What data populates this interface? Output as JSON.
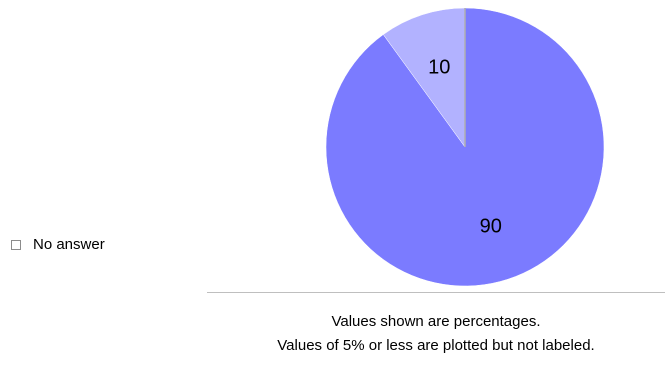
{
  "chart_data": {
    "type": "pie",
    "slices": [
      {
        "label": "",
        "value": 90,
        "color": "#7b7bff",
        "show_label": true
      },
      {
        "label": "",
        "value": 10,
        "color": "#b2b2ff",
        "show_label": true
      },
      {
        "label": "No answer",
        "value": 0,
        "color": "#b0b0b0",
        "show_label": false
      }
    ],
    "start_angle": "top",
    "direction": "clockwise"
  },
  "legend": {
    "items": [
      {
        "label": "No answer",
        "color": "#ffffff"
      }
    ]
  },
  "footnotes": {
    "line1": "Values shown are percentages.",
    "line2": "Values of 5% or less are plotted but not labeled."
  }
}
